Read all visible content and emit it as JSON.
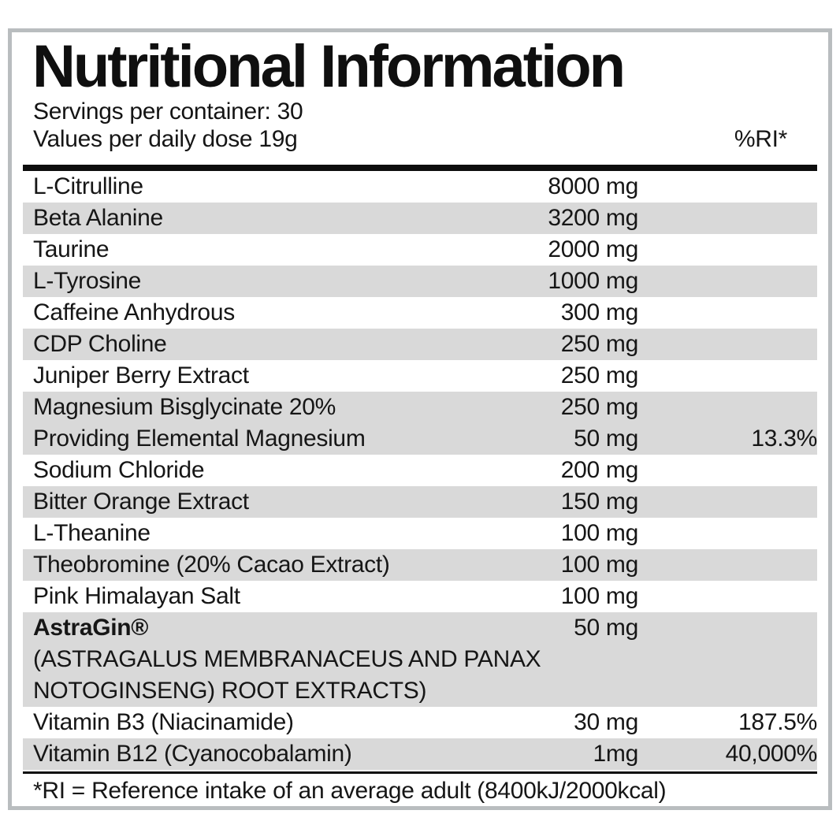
{
  "header": {
    "title": "Nutritional Information",
    "servings": "Servings per container: 30",
    "dose": "Values per daily dose 19g",
    "ri_header": "%RI*"
  },
  "rows": [
    {
      "name": "L-Citrulline",
      "amount": "8000 mg",
      "ri": "",
      "shade": false
    },
    {
      "name": "Beta Alanine",
      "amount": "3200 mg",
      "ri": "",
      "shade": true
    },
    {
      "name": "Taurine",
      "amount": "2000 mg",
      "ri": "",
      "shade": false
    },
    {
      "name": "L-Tyrosine",
      "amount": "1000 mg",
      "ri": "",
      "shade": true
    },
    {
      "name": "Caffeine Anhydrous",
      "amount": "300 mg",
      "ri": "",
      "shade": false
    },
    {
      "name": "CDP Choline",
      "amount": "250 mg",
      "ri": "",
      "shade": true
    },
    {
      "name": "Juniper Berry Extract",
      "amount": "250 mg",
      "ri": "",
      "shade": false
    },
    {
      "name": "Magnesium Bisglycinate 20%",
      "amount": "250 mg",
      "ri": "",
      "shade": true
    },
    {
      "name": "Providing Elemental Magnesium",
      "amount": "50 mg",
      "ri": "13.3%",
      "shade": true
    },
    {
      "name": "Sodium Chloride",
      "amount": "200 mg",
      "ri": "",
      "shade": false
    },
    {
      "name": "Bitter Orange Extract",
      "amount": "150 mg",
      "ri": "",
      "shade": true
    },
    {
      "name": "L-Theanine",
      "amount": "100 mg",
      "ri": "",
      "shade": false
    },
    {
      "name": "Theobromine (20% Cacao Extract)",
      "amount": "100 mg",
      "ri": "",
      "shade": true
    },
    {
      "name": "Pink Himalayan Salt",
      "amount": "100 mg",
      "ri": "",
      "shade": false
    },
    {
      "name": "AstraGin®",
      "amount": "50 mg",
      "ri": "",
      "shade": true,
      "bold": true,
      "sub": [
        "(ASTRAGALUS MEMBRANACEUS AND PANAX",
        "NOTOGINSENG) ROOT EXTRACTS)"
      ]
    },
    {
      "name": "Vitamin B3 (Niacinamide)",
      "amount": "30 mg",
      "ri": "187.5%",
      "shade": false
    },
    {
      "name": "Vitamin B12 (Cyanocobalamin)",
      "amount": "1mg",
      "ri": "40,000%",
      "shade": true
    }
  ],
  "footer": {
    "note": "*RI = Reference intake of an average adult (8400kJ/2000kcal)"
  },
  "colors": {
    "shade": "#d9d9d9",
    "border": "#b9bdbf",
    "rule": "#0d0d0d",
    "text": "#161616"
  }
}
